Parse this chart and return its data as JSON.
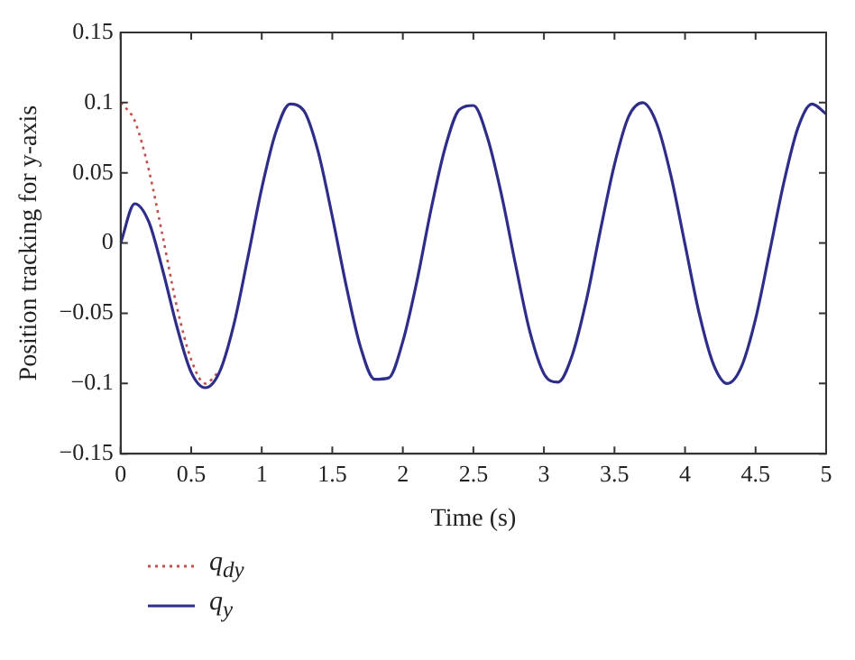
{
  "chart_data": {
    "type": "line",
    "xlabel": "Time (s)",
    "ylabel": "Position tracking for y-axis",
    "x": [
      0,
      0.1,
      0.2,
      0.3,
      0.4,
      0.5,
      0.6,
      0.7,
      0.8,
      0.9,
      1.0,
      1.1,
      1.2,
      1.3,
      1.4,
      1.5,
      1.6,
      1.7,
      1.8,
      1.9,
      2.0,
      2.1,
      2.2,
      2.3,
      2.4,
      2.5,
      2.6,
      2.7,
      2.8,
      2.9,
      3.0,
      3.1,
      3.2,
      3.3,
      3.4,
      3.5,
      3.6,
      3.7,
      3.8,
      3.9,
      4.0,
      4.1,
      4.2,
      4.3,
      4.4,
      4.5,
      4.6,
      4.7,
      4.8,
      4.9,
      5.0
    ],
    "series": [
      {
        "name": "q$_{dy}$",
        "color": "#c0504d",
        "line_style": "dotted",
        "values": [
          0.1,
          0.087,
          0.052,
          0.004,
          -0.046,
          -0.083,
          -0.1,
          -0.091,
          null,
          null,
          null,
          null,
          null,
          null,
          null,
          null,
          null,
          null,
          null,
          null,
          null,
          null,
          null,
          null,
          null,
          null,
          null,
          null,
          null,
          null,
          null,
          null,
          null,
          null,
          null,
          null,
          null,
          null,
          null,
          null,
          null,
          null,
          null,
          null,
          null,
          null,
          null,
          null,
          null,
          null,
          null
        ]
      },
      {
        "name": "q$_{y}$",
        "color": "#2e2e8a",
        "line_style": "solid",
        "values": [
          0,
          0.028,
          0.015,
          -0.02,
          -0.06,
          -0.092,
          -0.103,
          -0.092,
          -0.059,
          -0.011,
          0.039,
          0.079,
          0.099,
          0.094,
          0.065,
          0.019,
          -0.031,
          -0.074,
          -0.097,
          -0.096,
          -0.07,
          -0.027,
          0.024,
          0.068,
          0.095,
          0.098,
          0.075,
          0.034,
          -0.016,
          -0.063,
          -0.093,
          -0.099,
          -0.08,
          -0.041,
          0.009,
          0.056,
          0.09,
          0.1,
          0.085,
          0.048,
          -0.001,
          -0.05,
          -0.086,
          -0.1,
          -0.088,
          -0.054,
          -0.006,
          0.043,
          0.082,
          0.099,
          0.092
        ]
      }
    ],
    "xlim": [
      0,
      5
    ],
    "xticks": [
      0,
      0.5,
      1,
      1.5,
      2,
      2.5,
      3,
      3.5,
      4,
      4.5,
      5
    ],
    "ylim": [
      -0.15,
      0.15
    ],
    "yticks": [
      -0.15,
      -0.1,
      -0.05,
      0,
      0.05,
      0.1,
      0.15
    ],
    "grid": false,
    "legend": "bottom left",
    "marker": "none"
  }
}
